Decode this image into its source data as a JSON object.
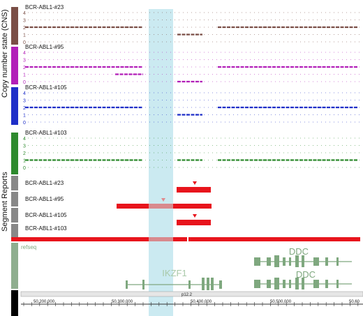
{
  "axis_labels": {
    "cns": "Copy number state (CNS)",
    "segments": "Segment Reports"
  },
  "tracks": [
    {
      "sample": "BCR-ABL1-#23",
      "color": "#7a4e46",
      "ticks": [
        "4",
        "3",
        "2",
        "1",
        "0"
      ]
    },
    {
      "sample": "BCR-ABL1-#95",
      "color": "#b21fb8",
      "ticks": [
        "4",
        "3",
        "2",
        "1",
        "0"
      ]
    },
    {
      "sample": "BCR-ABL1-#105",
      "color": "#1f2fc8",
      "ticks": [
        "4",
        "3",
        "2",
        "1",
        "0"
      ]
    },
    {
      "sample": "BCR-ABL1-#103",
      "color": "#2e8a2e",
      "ticks": [
        "4",
        "3",
        "2",
        "1",
        "0"
      ]
    }
  ],
  "segment_samples": [
    "BCR-ABL1-#23",
    "BCR-ABL1-#95",
    "BCR-ABL1-#105",
    "BCR-ABL1-#103"
  ],
  "genes": {
    "track_label": "refseq",
    "ddc_top": "DDC",
    "ikzf1": "IKZF1",
    "ddc_bottom": "DDC"
  },
  "ruler": {
    "band": "p12.2",
    "positions": [
      "50,200,000",
      "50,300,000",
      "50,400,000",
      "50,500,000",
      "50,60"
    ]
  },
  "colors": {
    "highlight": "#a8dce8",
    "segment": "#e8141c",
    "gene": "#7fa87f"
  }
}
